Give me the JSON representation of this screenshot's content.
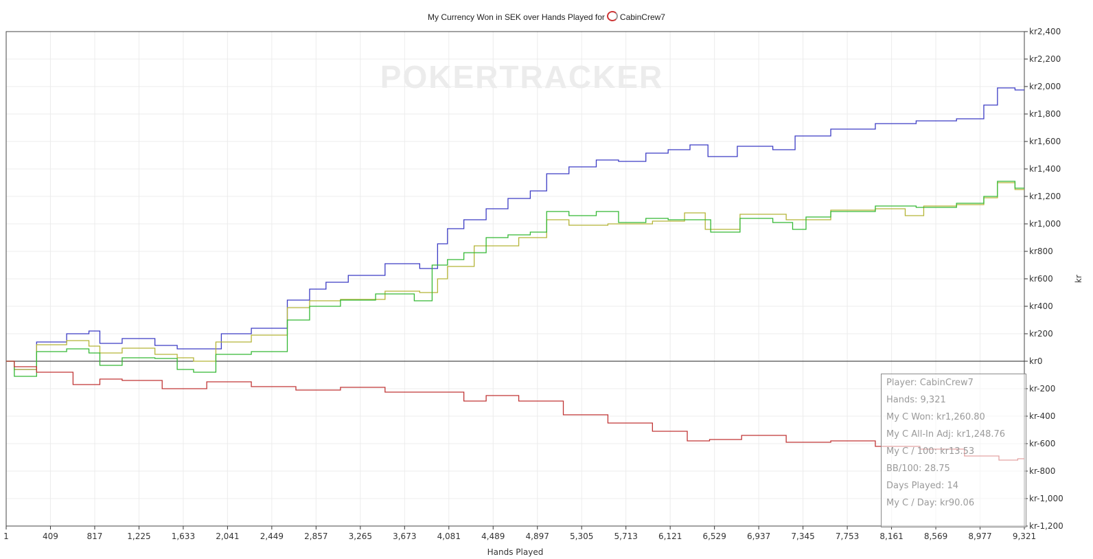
{
  "chart_data": {
    "type": "line",
    "title": "My Currency Won in SEK over Hands Played for",
    "title_player": "CabinCrew7",
    "xlabel": "Hands Played",
    "ylabel": "kr",
    "xlim": [
      1,
      9321
    ],
    "ylim": [
      -1200,
      2400
    ],
    "x_ticks": [
      "1",
      "409",
      "817",
      "1,225",
      "1,633",
      "2,041",
      "2,449",
      "2,857",
      "3,265",
      "3,673",
      "4,081",
      "4,489",
      "4,897",
      "5,305",
      "5,713",
      "6,121",
      "6,529",
      "6,937",
      "7,345",
      "7,753",
      "8,161",
      "8,569",
      "8,977",
      "9,321"
    ],
    "y_ticks": [
      "kr2,400",
      "kr2,200",
      "kr2,000",
      "kr1,800",
      "kr1,600",
      "kr1,400",
      "kr1,200",
      "kr1,000",
      "kr800",
      "kr600",
      "kr400",
      "kr200",
      "kr0",
      "kr-200",
      "kr-400",
      "kr-600",
      "kr-800",
      "kr-1,000",
      "kr-1,200"
    ],
    "grid": true,
    "watermark": "POKERTRACKER",
    "series": [
      {
        "color": "#3b3bc4",
        "points": [
          [
            1,
            0
          ],
          [
            150,
            -60
          ],
          [
            409,
            140
          ],
          [
            700,
            200
          ],
          [
            817,
            220
          ],
          [
            900,
            130
          ],
          [
            1225,
            165
          ],
          [
            1500,
            115
          ],
          [
            1633,
            90
          ],
          [
            1900,
            90
          ],
          [
            2041,
            200
          ],
          [
            2449,
            240
          ],
          [
            2700,
            445
          ],
          [
            2857,
            525
          ],
          [
            3000,
            575
          ],
          [
            3265,
            625
          ],
          [
            3673,
            710
          ],
          [
            3900,
            675
          ],
          [
            4000,
            855
          ],
          [
            4081,
            965
          ],
          [
            4300,
            1030
          ],
          [
            4489,
            1110
          ],
          [
            4700,
            1185
          ],
          [
            4897,
            1240
          ],
          [
            5000,
            1365
          ],
          [
            5305,
            1415
          ],
          [
            5500,
            1465
          ],
          [
            5713,
            1455
          ],
          [
            6000,
            1515
          ],
          [
            6121,
            1540
          ],
          [
            6400,
            1575
          ],
          [
            6450,
            1490
          ],
          [
            6937,
            1565
          ],
          [
            7100,
            1540
          ],
          [
            7345,
            1640
          ],
          [
            7753,
            1690
          ],
          [
            8161,
            1730
          ],
          [
            8500,
            1750
          ],
          [
            8900,
            1765
          ],
          [
            9000,
            1865
          ],
          [
            9150,
            1990
          ],
          [
            9321,
            1975
          ]
        ]
      },
      {
        "color": "#b4b436",
        "points": [
          [
            1,
            0
          ],
          [
            150,
            -60
          ],
          [
            409,
            120
          ],
          [
            700,
            150
          ],
          [
            817,
            110
          ],
          [
            900,
            60
          ],
          [
            1225,
            95
          ],
          [
            1500,
            50
          ],
          [
            1633,
            25
          ],
          [
            1800,
            0
          ],
          [
            2041,
            140
          ],
          [
            2449,
            190
          ],
          [
            2700,
            390
          ],
          [
            2857,
            440
          ],
          [
            3265,
            450
          ],
          [
            3673,
            510
          ],
          [
            3900,
            500
          ],
          [
            4000,
            600
          ],
          [
            4081,
            690
          ],
          [
            4489,
            840
          ],
          [
            4897,
            900
          ],
          [
            5000,
            1030
          ],
          [
            5305,
            990
          ],
          [
            5713,
            1000
          ],
          [
            6121,
            1020
          ],
          [
            6300,
            1080
          ],
          [
            6500,
            960
          ],
          [
            6937,
            1070
          ],
          [
            7345,
            1030
          ],
          [
            7753,
            1100
          ],
          [
            8161,
            1110
          ],
          [
            8300,
            1060
          ],
          [
            8500,
            1130
          ],
          [
            8900,
            1140
          ],
          [
            9000,
            1190
          ],
          [
            9150,
            1300
          ],
          [
            9321,
            1250
          ]
        ]
      },
      {
        "color": "#33b833",
        "points": [
          [
            1,
            0
          ],
          [
            150,
            -110
          ],
          [
            409,
            70
          ],
          [
            700,
            90
          ],
          [
            817,
            60
          ],
          [
            900,
            -30
          ],
          [
            1225,
            25
          ],
          [
            1500,
            20
          ],
          [
            1633,
            -60
          ],
          [
            1800,
            -80
          ],
          [
            2041,
            50
          ],
          [
            2449,
            70
          ],
          [
            2700,
            300
          ],
          [
            2857,
            400
          ],
          [
            3265,
            445
          ],
          [
            3500,
            490
          ],
          [
            3673,
            490
          ],
          [
            3800,
            440
          ],
          [
            4000,
            700
          ],
          [
            4081,
            740
          ],
          [
            4300,
            790
          ],
          [
            4489,
            900
          ],
          [
            4700,
            920
          ],
          [
            4897,
            940
          ],
          [
            5000,
            1090
          ],
          [
            5305,
            1060
          ],
          [
            5500,
            1090
          ],
          [
            5713,
            1010
          ],
          [
            6000,
            1040
          ],
          [
            6121,
            1030
          ],
          [
            6400,
            1030
          ],
          [
            6500,
            940
          ],
          [
            6937,
            1040
          ],
          [
            7100,
            1010
          ],
          [
            7300,
            960
          ],
          [
            7345,
            1050
          ],
          [
            7753,
            1090
          ],
          [
            8161,
            1130
          ],
          [
            8500,
            1120
          ],
          [
            8900,
            1150
          ],
          [
            9000,
            1200
          ],
          [
            9150,
            1310
          ],
          [
            9321,
            1260
          ]
        ]
      },
      {
        "color": "#c03434",
        "points": [
          [
            1,
            0
          ],
          [
            150,
            -40
          ],
          [
            409,
            -80
          ],
          [
            817,
            -170
          ],
          [
            900,
            -130
          ],
          [
            1225,
            -140
          ],
          [
            1633,
            -200
          ],
          [
            2041,
            -150
          ],
          [
            2449,
            -185
          ],
          [
            2857,
            -210
          ],
          [
            3265,
            -190
          ],
          [
            3673,
            -225
          ],
          [
            4081,
            -225
          ],
          [
            4300,
            -290
          ],
          [
            4489,
            -250
          ],
          [
            4897,
            -290
          ],
          [
            5305,
            -390
          ],
          [
            5713,
            -450
          ],
          [
            6121,
            -510
          ],
          [
            6350,
            -580
          ],
          [
            6529,
            -570
          ],
          [
            6937,
            -540
          ],
          [
            7345,
            -590
          ],
          [
            7753,
            -580
          ],
          [
            8161,
            -620
          ],
          [
            8569,
            -640
          ],
          [
            8977,
            -690
          ],
          [
            9200,
            -720
          ],
          [
            9321,
            -710
          ]
        ]
      }
    ]
  },
  "infobox": {
    "player": "Player: CabinCrew7",
    "hands": "Hands: 9,321",
    "won": "My C Won: kr1,260.80",
    "allin": "My C All-In Adj: kr1,248.76",
    "per100": "My C / 100: kr13.53",
    "bb100": "BB/100: 28.75",
    "days": "Days Played: 14",
    "perday": "My C / Day: kr90.06"
  }
}
